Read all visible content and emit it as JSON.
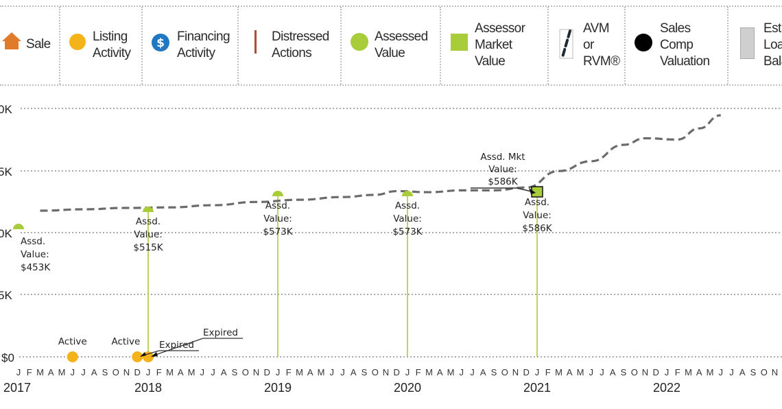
{
  "legend": {
    "items": [
      {
        "key": "sale",
        "label_lines": [
          "Sale"
        ],
        "icon": "house-icon",
        "color": "#e07b2a"
      },
      {
        "key": "listing",
        "label_lines": [
          "Listing",
          "Activity"
        ],
        "icon": "circle-icon",
        "color": "#f5b31a"
      },
      {
        "key": "financing",
        "label_lines": [
          "Financing",
          "Activity"
        ],
        "icon": "dollar-circle-icon",
        "color": "#1f78c1"
      },
      {
        "key": "distressed",
        "label_lines": [
          "Distressed",
          "Actions"
        ],
        "icon": "vertical-bar-icon",
        "color": "#b04a3a"
      },
      {
        "key": "assessed",
        "label_lines": [
          "Assessed",
          "Value"
        ],
        "icon": "circle-icon",
        "color": "#a8cc3a"
      },
      {
        "key": "assessor_market",
        "label_lines": [
          "Assessor",
          "Market",
          "Value"
        ],
        "icon": "square-icon",
        "color": "#a8cc3a"
      },
      {
        "key": "avm",
        "label_lines": [
          "AVM",
          "or",
          "RVM®"
        ],
        "icon": "dashed-line-icon",
        "color": "#1e2a36"
      },
      {
        "key": "sales_comp",
        "label_lines": [
          "Sales",
          "Comp",
          "Valuation"
        ],
        "icon": "circle-icon",
        "color": "#000000"
      },
      {
        "key": "est_loan",
        "label_lines": [
          "Est.",
          "Loa",
          "Bala"
        ],
        "icon": "bar-icon",
        "color": "#cfcfcf"
      }
    ]
  },
  "chart_data": {
    "type": "line",
    "title": "",
    "xlabel": "",
    "ylabel": "",
    "y_tick_labels": [
      "$0",
      "5K",
      "0K",
      "5K",
      "0K"
    ],
    "grid": true,
    "legend_position": "top",
    "x_range": [
      "2017-01",
      "2022-12"
    ],
    "years": [
      "2017",
      "2018",
      "2019",
      "2020",
      "2021",
      "2022"
    ],
    "months": [
      "J",
      "F",
      "M",
      "A",
      "M",
      "J",
      "J",
      "A",
      "S",
      "O",
      "N",
      "D"
    ],
    "avm_series": {
      "name": "AVM or RVM®",
      "color": "#666666",
      "points": [
        {
          "t": "2017-03",
          "v": 510
        },
        {
          "t": "2017-07",
          "v": 515
        },
        {
          "t": "2017-11",
          "v": 520
        },
        {
          "t": "2018-03",
          "v": 522
        },
        {
          "t": "2018-07",
          "v": 530
        },
        {
          "t": "2018-11",
          "v": 542
        },
        {
          "t": "2019-03",
          "v": 550
        },
        {
          "t": "2019-07",
          "v": 560
        },
        {
          "t": "2019-10",
          "v": 568
        },
        {
          "t": "2019-12",
          "v": 582
        },
        {
          "t": "2020-03",
          "v": 578
        },
        {
          "t": "2020-06",
          "v": 585
        },
        {
          "t": "2020-09",
          "v": 585
        },
        {
          "t": "2020-12",
          "v": 590
        },
        {
          "t": "2021-03",
          "v": 615
        },
        {
          "t": "2021-06",
          "v": 630
        },
        {
          "t": "2021-09",
          "v": 655
        },
        {
          "t": "2021-11",
          "v": 665
        },
        {
          "t": "2022-02",
          "v": 663
        },
        {
          "t": "2022-04",
          "v": 680
        },
        {
          "t": "2022-06",
          "v": 700
        }
      ]
    },
    "assessed_values": [
      {
        "t": "2017-01",
        "value": 453,
        "label": [
          "Assd.",
          "Value:",
          "$453K"
        ]
      },
      {
        "t": "2018-01",
        "value": 515,
        "label": [
          "Assd.",
          "Value:",
          "$515K"
        ]
      },
      {
        "t": "2019-01",
        "value": 573,
        "label": [
          "Assd.",
          "Value:",
          "$573K"
        ]
      },
      {
        "t": "2020-01",
        "value": 573,
        "label": [
          "Assd.",
          "Value:",
          "$573K"
        ]
      },
      {
        "t": "2021-01",
        "value": 586,
        "label": [
          "Assd.",
          "Value:",
          "$586K"
        ]
      }
    ],
    "assessor_market_values": [
      {
        "t": "2021-01",
        "value": 586,
        "label": [
          "Assd. Mkt",
          "Value:",
          "$586K"
        ]
      }
    ],
    "listing_activity": [
      {
        "t": "2017-06",
        "status": "Active"
      },
      {
        "t": "2017-12",
        "status": "Active"
      },
      {
        "t": "2017-12",
        "status": "Expired"
      },
      {
        "t": "2018-01",
        "status": "Expired"
      }
    ]
  }
}
